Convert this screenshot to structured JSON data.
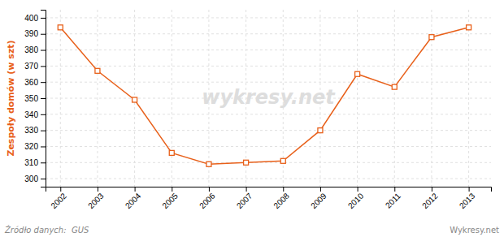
{
  "chart_data": {
    "type": "line",
    "ylabel": "Zespoły domów (w szt)",
    "x": [
      2002,
      2003,
      2004,
      2005,
      2006,
      2007,
      2008,
      2009,
      2010,
      2011,
      2012,
      2013
    ],
    "values": [
      394,
      367,
      349,
      316,
      309,
      310,
      311,
      330,
      365,
      357,
      388,
      394
    ],
    "color": "#e8601a",
    "marker": "square",
    "xlim": [
      2001.6,
      2013.6
    ],
    "xticks": [
      2002,
      2003,
      2004,
      2005,
      2006,
      2007,
      2008,
      2009,
      2010,
      2011,
      2012,
      2013
    ],
    "ylim": [
      295,
      405
    ],
    "yticks": [
      300,
      310,
      320,
      330,
      340,
      350,
      360,
      370,
      380,
      390,
      400
    ],
    "grid": true,
    "annotations": [
      "wykresy.net",
      "Źródło danych:  GUS",
      "Wykresy.net"
    ]
  }
}
